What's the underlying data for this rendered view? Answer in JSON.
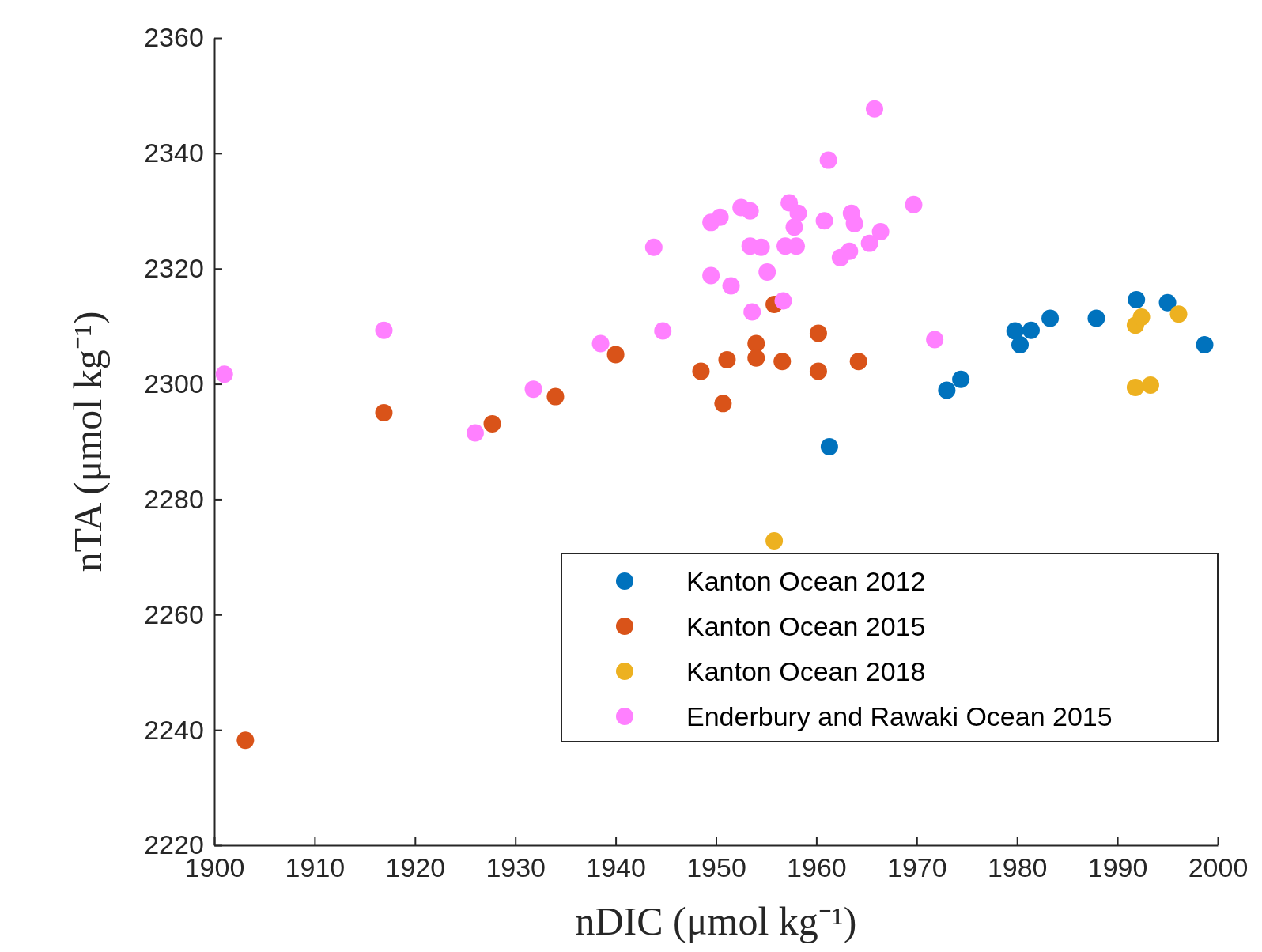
{
  "chart_data": {
    "type": "scatter",
    "xlabel": "nDIC (μmol kg⁻¹)",
    "ylabel": "nTA (μmol kg⁻¹)",
    "xlim": [
      1900,
      2000
    ],
    "xticks": [
      1900,
      1910,
      1920,
      1930,
      1940,
      1950,
      1960,
      1970,
      1980,
      1990,
      2000
    ],
    "ylim": [
      2220,
      2360
    ],
    "yticks": [
      2220,
      2240,
      2260,
      2280,
      2300,
      2320,
      2340,
      2360
    ],
    "grid": false,
    "legend": "bottom right",
    "marker": "circle",
    "series": [
      {
        "name": "Kanton Ocean 2012",
        "color": "#0072bd",
        "x": [
          1961.3,
          1973.0,
          1974.4,
          1979.8,
          1981.4,
          1980.3,
          1983.3,
          1987.9,
          1991.9,
          1995.0,
          1998.7
        ],
        "values": [
          2289.1,
          2298.9,
          2300.8,
          2309.2,
          2309.3,
          2306.8,
          2311.4,
          2311.4,
          2314.6,
          2314.1,
          2306.8
        ]
      },
      {
        "name": "Kanton Ocean 2015",
        "color": "#d95319",
        "x": [
          1903.1,
          1916.9,
          1927.7,
          1934.0,
          1940.0,
          1948.5,
          1950.7,
          1951.1,
          1954.0,
          1954.0,
          1955.8,
          1956.6,
          1960.2,
          1960.2,
          1964.2
        ],
        "values": [
          2238.2,
          2295.0,
          2293.1,
          2297.8,
          2305.1,
          2302.2,
          2296.6,
          2304.2,
          2307.0,
          2304.5,
          2313.8,
          2303.9,
          2308.8,
          2302.2,
          2303.9
        ]
      },
      {
        "name": "Kanton Ocean 2018",
        "color": "#edb120",
        "x": [
          1955.8,
          1991.8,
          1992.4,
          1996.1,
          1991.8,
          1993.3
        ],
        "values": [
          2272.8,
          2310.2,
          2311.6,
          2312.1,
          2299.4,
          2299.8
        ]
      },
      {
        "name": "Enderbury and Rawaki Ocean 2015",
        "color": "#ff80ff",
        "x": [
          1901.0,
          1916.9,
          1926.0,
          1931.8,
          1938.5,
          1944.7,
          1943.8,
          1949.5,
          1951.5,
          1949.5,
          1950.4,
          1952.5,
          1953.4,
          1953.4,
          1954.5,
          1955.1,
          1953.6,
          1956.7,
          1957.3,
          1957.8,
          1958.2,
          1956.9,
          1958.0,
          1960.8,
          1961.2,
          1965.8,
          1963.5,
          1963.8,
          1962.4,
          1963.3,
          1965.3,
          1966.4,
          1969.7,
          1971.8
        ],
        "values": [
          2301.7,
          2309.3,
          2291.5,
          2299.1,
          2307.0,
          2309.2,
          2323.7,
          2318.8,
          2317.0,
          2328.0,
          2328.9,
          2330.6,
          2330.0,
          2323.9,
          2323.7,
          2319.4,
          2312.5,
          2314.4,
          2331.4,
          2327.2,
          2329.6,
          2323.9,
          2323.9,
          2328.3,
          2338.8,
          2347.7,
          2329.6,
          2327.8,
          2321.9,
          2323.0,
          2324.4,
          2326.4,
          2331.1,
          2307.7
        ]
      }
    ]
  }
}
